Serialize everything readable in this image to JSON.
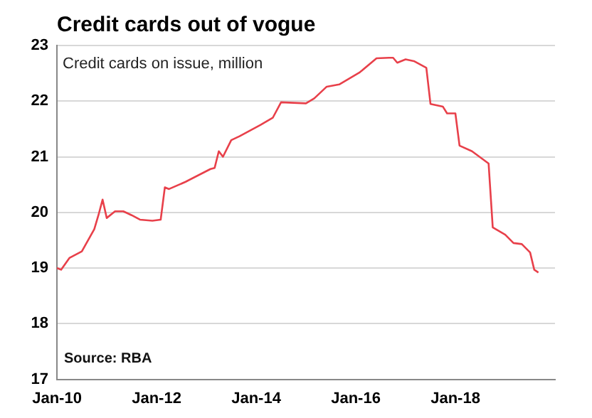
{
  "chart_data": {
    "type": "line",
    "title": "Credit cards out of vogue",
    "ylabel": "Credit cards on issue, million",
    "annotations": [
      "Source: RBA"
    ],
    "x": [
      "2010-01",
      "2010-02",
      "2010-04",
      "2010-07",
      "2010-10",
      "2010-11",
      "2010-12",
      "2011-01",
      "2011-03",
      "2011-05",
      "2011-07",
      "2011-09",
      "2011-12",
      "2012-02",
      "2012-03",
      "2012-04",
      "2012-08",
      "2013-02",
      "2013-03",
      "2013-04",
      "2013-05",
      "2013-07",
      "2013-09",
      "2014-02",
      "2014-05",
      "2014-07",
      "2014-10",
      "2015-01",
      "2015-03",
      "2015-06",
      "2015-09",
      "2016-02",
      "2016-06",
      "2016-09",
      "2016-10",
      "2016-11",
      "2017-01",
      "2017-03",
      "2017-06",
      "2017-07",
      "2017-10",
      "2017-11",
      "2018-01",
      "2018-02",
      "2018-05",
      "2018-09",
      "2018-10",
      "2019-01",
      "2019-03",
      "2019-05",
      "2019-07",
      "2019-08",
      "2019-09"
    ],
    "series": [
      {
        "color": "#e8404a",
        "values": [
          19.0,
          18.97,
          19.18,
          19.3,
          19.7,
          19.95,
          20.23,
          19.9,
          20.02,
          20.02,
          19.95,
          19.87,
          19.85,
          19.87,
          20.45,
          20.42,
          20.55,
          20.78,
          20.8,
          21.1,
          21.0,
          21.3,
          21.37,
          21.57,
          21.7,
          21.98,
          21.97,
          21.96,
          22.05,
          22.26,
          22.3,
          22.52,
          22.77,
          22.78,
          22.78,
          22.69,
          22.75,
          22.72,
          22.6,
          21.95,
          21.9,
          21.78,
          21.78,
          21.2,
          21.1,
          20.88,
          19.73,
          19.6,
          19.45,
          19.43,
          19.28,
          18.97,
          18.92
        ]
      }
    ],
    "xlim": [
      "2010-01",
      "2020-01"
    ],
    "xticks": [
      {
        "value": "2010-01",
        "label": "Jan-10"
      },
      {
        "value": "2012-01",
        "label": "Jan-12"
      },
      {
        "value": "2014-01",
        "label": "Jan-14"
      },
      {
        "value": "2016-01",
        "label": "Jan-16"
      },
      {
        "value": "2018-01",
        "label": "Jan-18"
      }
    ],
    "ylim": [
      17,
      23
    ],
    "yticks": [
      17,
      18,
      19,
      20,
      21,
      22,
      23
    ],
    "grid": "y",
    "legend": false,
    "marker": "none",
    "line_style": "solid"
  }
}
